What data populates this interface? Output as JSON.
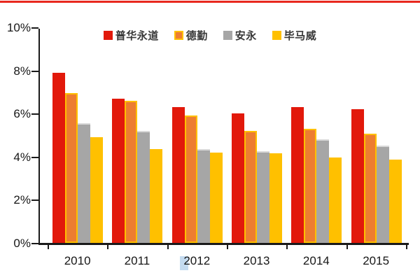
{
  "page": {
    "top_accent_bar_color": "#e8281e",
    "background_color": "#ffffff"
  },
  "chart_data": {
    "type": "bar",
    "title": "",
    "categories": [
      "2010",
      "2011",
      "2012",
      "2013",
      "2014",
      "2015"
    ],
    "series": [
      {
        "name": "普华永道",
        "color": "#e2190b",
        "values": [
          7.9,
          6.7,
          6.3,
          6.0,
          6.3,
          6.2
        ]
      },
      {
        "name": "德勤",
        "color": "#ed7d31",
        "border_color": "#ffc000",
        "values": [
          6.95,
          6.6,
          5.9,
          5.2,
          5.3,
          5.05
        ]
      },
      {
        "name": "安永",
        "color": "#a6a6a6",
        "border_top_color": "#d9d9d9",
        "values": [
          5.55,
          5.2,
          4.35,
          4.25,
          4.8,
          4.5
        ]
      },
      {
        "name": "毕马威",
        "color": "#ffc000",
        "values": [
          4.9,
          4.35,
          4.2,
          4.15,
          3.95,
          3.85
        ]
      }
    ],
    "unit": "%",
    "ylim": [
      0,
      10
    ],
    "yticks": [
      0,
      2,
      4,
      6,
      8,
      10
    ],
    "ytick_labels": [
      "0%",
      "2%",
      "4%",
      "6%",
      "8%",
      "10%"
    ],
    "legend_position": "top-center",
    "grid": false,
    "axis_color": "#1a1a1a",
    "tick_label_color": "#171717",
    "legend_text_color": "#383838",
    "selection_artifact": {
      "on_label": "2012",
      "color": "#9dc3e6"
    }
  }
}
